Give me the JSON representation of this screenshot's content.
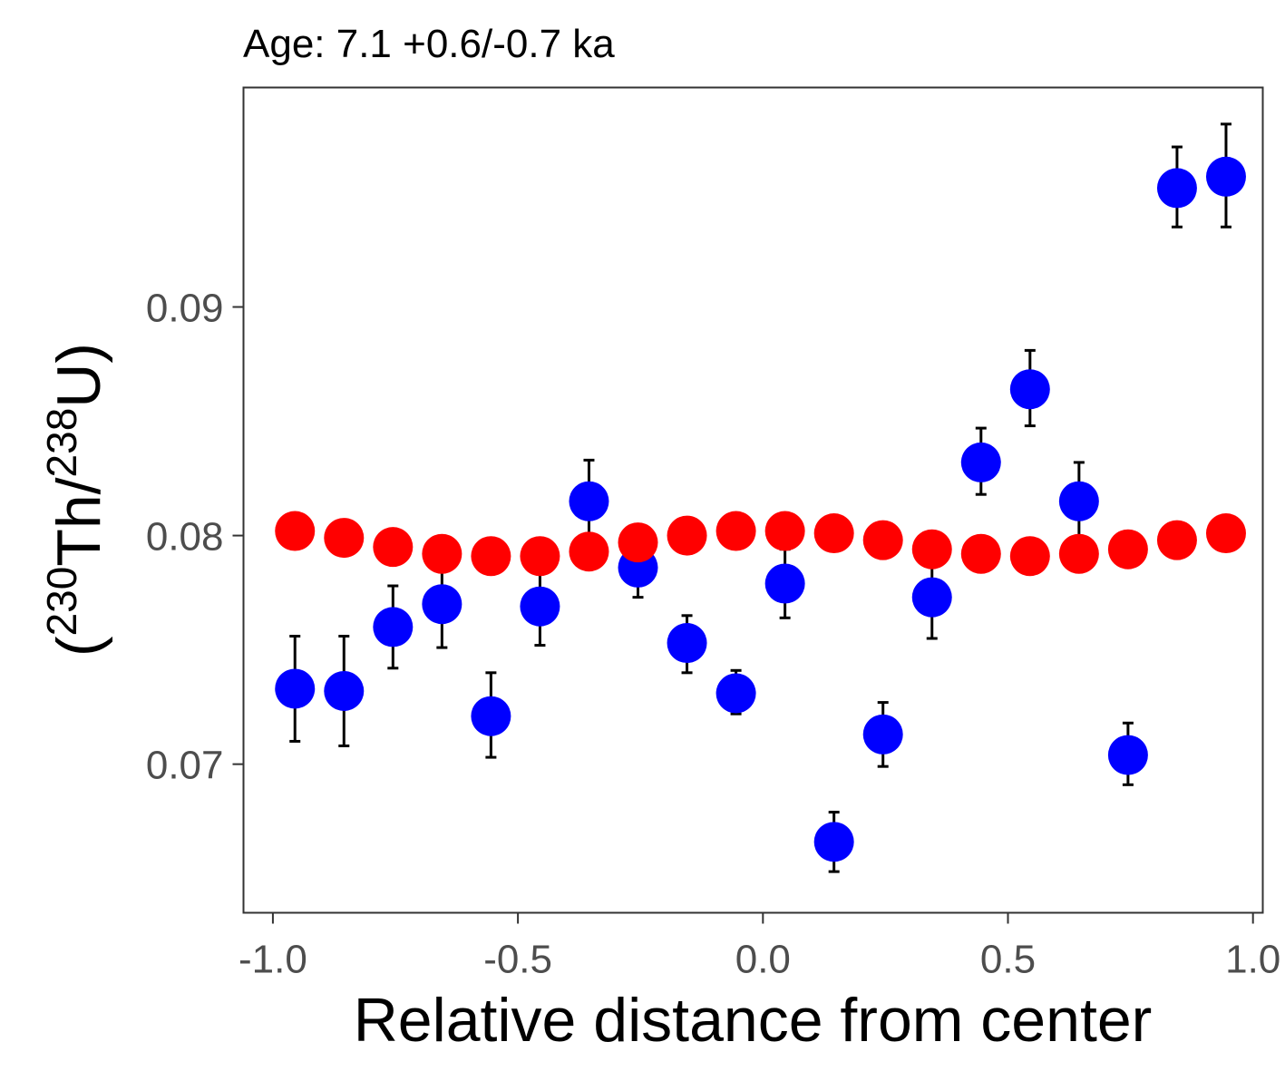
{
  "chart_data": {
    "type": "scatter",
    "title": "Age: 7.1 +0.6/-0.7 ka",
    "xlabel": "Relative distance from center",
    "ylabel": {
      "open": "(",
      "sup1": "230",
      "mid": "Th/",
      "sup2": "238",
      "end": "U)"
    },
    "xlim": [
      -1.06,
      1.02
    ],
    "ylim": [
      0.0635,
      0.0996
    ],
    "x_ticks": [
      -1.0,
      -0.5,
      0.0,
      0.5,
      1.0
    ],
    "x_tick_labels": [
      "-1.0",
      "-0.5",
      "0.0",
      "0.5",
      "1.0"
    ],
    "y_ticks": [
      0.07,
      0.08,
      0.09
    ],
    "y_tick_labels": [
      "0.07",
      "0.08",
      "0.09"
    ],
    "grid": false,
    "legend": "none",
    "series": [
      {
        "color": "#0000ff",
        "x": [
          -0.955,
          -0.855,
          -0.755,
          -0.655,
          -0.555,
          -0.455,
          -0.355,
          -0.255,
          -0.155,
          -0.055,
          0.045,
          0.145,
          0.245,
          0.345,
          0.445,
          0.545,
          0.645,
          0.745,
          0.845,
          0.945
        ],
        "y": [
          0.0733,
          0.0732,
          0.076,
          0.077,
          0.0721,
          0.0769,
          0.0815,
          0.0786,
          0.0753,
          0.0731,
          0.0779,
          0.0666,
          0.0713,
          0.0773,
          0.0832,
          0.0864,
          0.0815,
          0.0704,
          0.0952,
          0.0957
        ],
        "ymin": [
          0.071,
          0.0708,
          0.0742,
          0.0751,
          0.0703,
          0.0752,
          0.0799,
          0.0773,
          0.074,
          0.0722,
          0.0764,
          0.0653,
          0.0699,
          0.0755,
          0.0818,
          0.0848,
          0.0799,
          0.0691,
          0.0935,
          0.0935
        ],
        "ymax": [
          0.0756,
          0.0756,
          0.0778,
          0.0789,
          0.074,
          0.0786,
          0.0833,
          0.08,
          0.0765,
          0.0741,
          0.0794,
          0.0679,
          0.0727,
          0.0791,
          0.0847,
          0.0881,
          0.0832,
          0.0718,
          0.097,
          0.098
        ]
      },
      {
        "color": "#ff0000",
        "x": [
          -0.955,
          -0.855,
          -0.755,
          -0.655,
          -0.555,
          -0.455,
          -0.355,
          -0.255,
          -0.155,
          -0.055,
          0.045,
          0.145,
          0.245,
          0.345,
          0.445,
          0.545,
          0.645,
          0.745,
          0.845,
          0.945
        ],
        "y": [
          0.0802,
          0.0799,
          0.0795,
          0.0792,
          0.0791,
          0.0791,
          0.0793,
          0.0797,
          0.08,
          0.0802,
          0.0802,
          0.0801,
          0.0798,
          0.0794,
          0.0792,
          0.0791,
          0.0792,
          0.0794,
          0.0798,
          0.0801
        ]
      }
    ]
  }
}
